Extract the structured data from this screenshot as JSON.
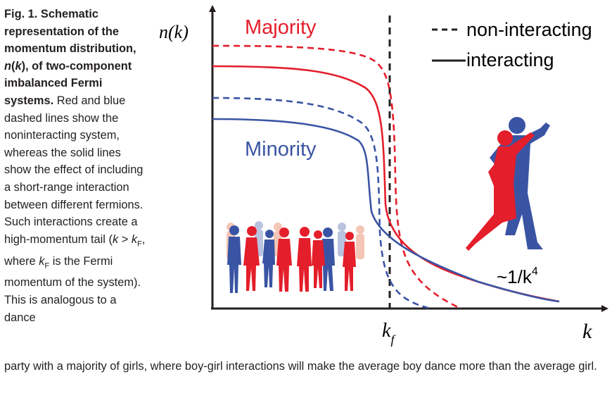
{
  "caption": {
    "bold_1": "Fig. 1. Schematic representation of the momentum distribution, ",
    "bold_nk_n": "n",
    "bold_nk_open": "(",
    "bold_nk_k": "k",
    "bold_nk_close": "), of two-component imbalanced Fermi systems.",
    "text_1": " Red and blue dashed lines show the noninteracting system, whereas the solid lines show the effect of including a short-range interaction between different fermions. Such interactions create a high-momentum tail (",
    "k": "k",
    "gt": " > ",
    "kF_k": "k",
    "kF_sub": "F",
    "where": ", where ",
    "kF2_k": "k",
    "kF2_sub": "F",
    "text_2": " is the Fermi momentum of the system). This is analogous to a dance",
    "text_3": "party with a majority of girls, where boy-girl interactions will make the average boy dance more than the average girl."
  },
  "chart_data": {
    "type": "line",
    "title": "",
    "ylabel": "n(k)",
    "xlabel": "k",
    "x_tick_labels": [
      "k_f"
    ],
    "x_tick_main": "k",
    "x_tick_sub": "f",
    "group_labels": {
      "majority": "Majority",
      "minority": "Minority"
    },
    "legend": {
      "dashed": "non-interacting",
      "solid": "interacting",
      "placement": "top-right"
    },
    "annotation_main": "~1/k",
    "annotation_sup": "4",
    "series": [
      {
        "group": "Majority",
        "style": "dashed",
        "color": "#e41e2b"
      },
      {
        "group": "Majority",
        "style": "solid",
        "color": "#e41e2b"
      },
      {
        "group": "Minority",
        "style": "dashed",
        "color": "#3a54a4"
      },
      {
        "group": "Minority",
        "style": "solid",
        "color": "#3a54a4"
      }
    ],
    "colors": {
      "majority": "#e41e2b",
      "minority": "#3a54a4",
      "axis": "#231f20"
    }
  }
}
